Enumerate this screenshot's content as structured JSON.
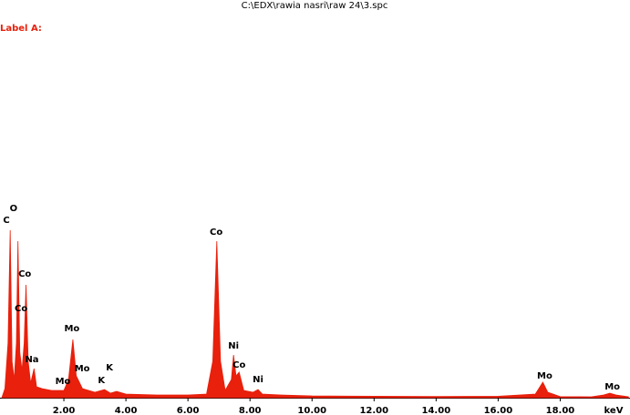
{
  "chart_data": {
    "type": "area",
    "title": "C:\\EDX\\rawia nasri\\raw 24\\3.spc",
    "subtitle": "Label A:",
    "x_label": "keV",
    "color": "#e8200c",
    "xlim": [
      0,
      20.25
    ],
    "ylim": [
      0,
      100
    ],
    "xticks": [
      {
        "value": 2,
        "label": "2.00"
      },
      {
        "value": 4,
        "label": "4.00"
      },
      {
        "value": 6,
        "label": "6.00"
      },
      {
        "value": 8,
        "label": "8.00"
      },
      {
        "value": 10,
        "label": "10.00"
      },
      {
        "value": 12,
        "label": "12.00"
      },
      {
        "value": 14,
        "label": "14.00"
      },
      {
        "value": 16,
        "label": "16.00"
      },
      {
        "value": 18,
        "label": "18.00"
      }
    ],
    "x": [
      0.0,
      0.1,
      0.2,
      0.27,
      0.33,
      0.4,
      0.47,
      0.52,
      0.58,
      0.65,
      0.72,
      0.78,
      0.85,
      0.93,
      1.04,
      1.12,
      1.3,
      1.6,
      2.0,
      2.15,
      2.29,
      2.4,
      2.6,
      3.0,
      3.31,
      3.5,
      3.7,
      4.0,
      5.0,
      6.0,
      6.6,
      6.8,
      6.93,
      7.05,
      7.2,
      7.4,
      7.47,
      7.55,
      7.65,
      7.8,
      8.1,
      8.26,
      8.4,
      9.0,
      10.0,
      12.0,
      14.0,
      16.0,
      17.2,
      17.44,
      17.6,
      18.0,
      19.0,
      19.4,
      19.6,
      19.8,
      20.2
    ],
    "values": [
      0,
      5,
      30,
      92,
      20,
      10,
      30,
      86,
      25,
      15,
      30,
      62,
      20,
      8,
      16,
      6,
      5,
      4,
      4,
      10,
      32,
      12,
      5,
      3,
      4.5,
      2.5,
      3.5,
      2,
      1.5,
      1.5,
      2,
      20,
      86,
      20,
      4,
      10,
      23.5,
      12,
      14,
      4,
      3,
      4.5,
      2,
      1.5,
      1,
      0.8,
      0.7,
      0.8,
      2,
      8.5,
      3,
      0.6,
      0.5,
      1.5,
      2.5,
      1.5,
      0.5
    ],
    "annotations": [
      {
        "text": "C",
        "x": 0.15,
        "y": 97.5
      },
      {
        "text": "O",
        "x": 0.38,
        "y": 104
      },
      {
        "text": "Co",
        "x": 0.74,
        "y": 68
      },
      {
        "text": "Co",
        "x": 0.62,
        "y": 49
      },
      {
        "text": "Na",
        "x": 0.97,
        "y": 21
      },
      {
        "text": "Mo",
        "x": 2.26,
        "y": 38
      },
      {
        "text": "Mo",
        "x": 1.97,
        "y": 9
      },
      {
        "text": "Mo",
        "x": 2.59,
        "y": 16
      },
      {
        "text": "K",
        "x": 3.47,
        "y": 16.5
      },
      {
        "text": "K",
        "x": 3.21,
        "y": 9.5
      },
      {
        "text": "Co",
        "x": 6.91,
        "y": 91
      },
      {
        "text": "Ni",
        "x": 7.47,
        "y": 28.5
      },
      {
        "text": "Co",
        "x": 7.65,
        "y": 18
      },
      {
        "text": "Ni",
        "x": 8.26,
        "y": 10
      },
      {
        "text": "Mo",
        "x": 17.5,
        "y": 12
      },
      {
        "text": "Mo",
        "x": 19.68,
        "y": 6
      }
    ]
  }
}
